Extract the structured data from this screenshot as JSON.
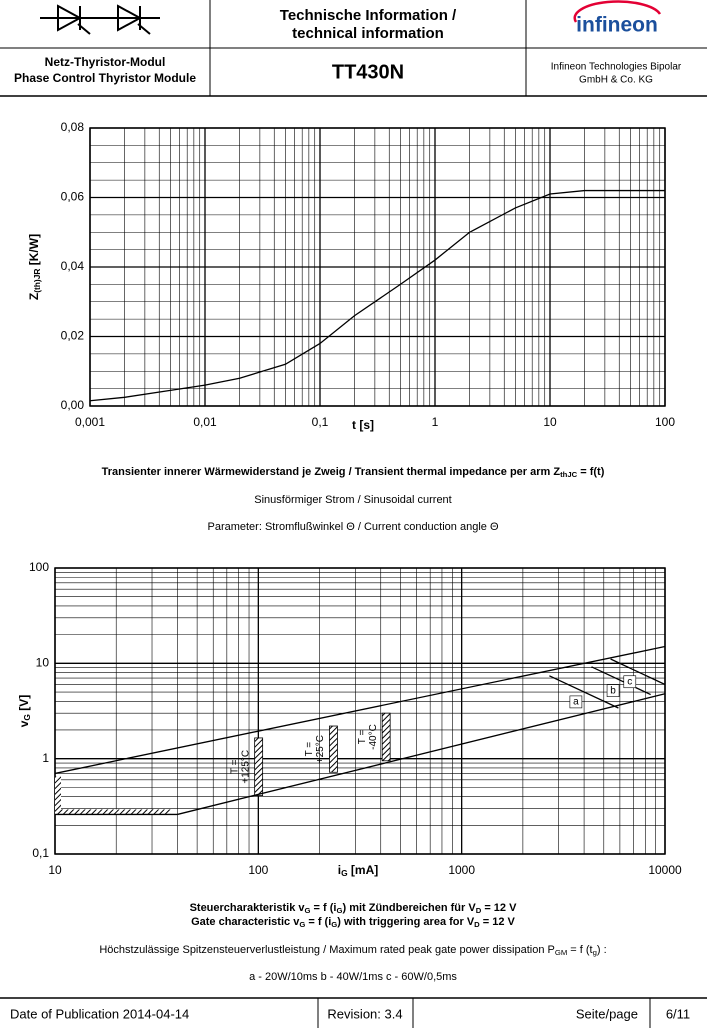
{
  "header": {
    "title": [
      "Technische Information /",
      "technical information"
    ],
    "product_type": [
      "Netz-Thyristor-Modul",
      "Phase Control Thyristor Module"
    ],
    "part_number": "TT430N",
    "logo": "infineon",
    "company": [
      "Infineon Technologies Bipolar",
      "GmbH & Co. KG"
    ]
  },
  "chart_data": [
    {
      "type": "line",
      "y_label": [
        "Z",
        "(th)JR",
        " [K/W]"
      ],
      "x_label": "t [s]",
      "log_x": true,
      "log_y": false,
      "grid": true,
      "xlim": [
        0.001,
        100
      ],
      "ylim": [
        0,
        0.08
      ],
      "xticks": [
        {
          "value": 0.001,
          "label": "0,001"
        },
        {
          "value": 0.01,
          "label": "0,01"
        },
        {
          "value": 0.1,
          "label": "0,1"
        },
        1,
        10,
        100
      ],
      "yticks": [
        {
          "value": 0,
          "label": "0,00"
        },
        {
          "value": 0.02,
          "label": "0,02"
        },
        {
          "value": 0.04,
          "label": "0,04"
        },
        {
          "value": 0.06,
          "label": "0,06"
        },
        {
          "value": 0.08,
          "label": "0,08"
        }
      ],
      "x": [
        0.001,
        0.002,
        0.005,
        0.01,
        0.02,
        0.05,
        0.1,
        0.2,
        0.5,
        1,
        2,
        5,
        10,
        20,
        50,
        100
      ],
      "series": [
        {
          "color": "#000000",
          "values": [
            0.0015,
            0.0025,
            0.0045,
            0.006,
            0.008,
            0.012,
            0.018,
            0.026,
            0.035,
            0.042,
            0.05,
            0.057,
            0.061,
            0.062,
            0.062,
            0.062
          ]
        }
      ],
      "captions": [
        [
          "Transienter innerer Wärmewiderstand je Zweig / Transient thermal impedance per arm Z",
          "thJC",
          " = f(t)"
        ],
        [
          "Sinusförmiger Strom / Sinusoidal current"
        ],
        [
          "Parameter: Stromflußwinkel Θ  / Current conduction angle Θ"
        ]
      ]
    },
    {
      "type": "line",
      "y_label": [
        "v",
        "G",
        " [V]"
      ],
      "x_label": [
        "i",
        "G",
        " [mA]"
      ],
      "log_x": true,
      "log_y": true,
      "grid": true,
      "xlim": [
        10,
        10000
      ],
      "ylim": [
        0.1,
        100
      ],
      "xticks": [
        10,
        100,
        1000,
        10000
      ],
      "yticks": [
        {
          "value": 0.1,
          "label": "0,1"
        },
        1,
        10,
        100
      ],
      "series": [
        {
          "color": "#000000",
          "x": [
            10,
            10000
          ],
          "values": [
            0.7,
            15
          ]
        },
        {
          "color": "#000000",
          "x": [
            40,
            10000
          ],
          "values": [
            0.26,
            4.8
          ]
        },
        {
          "color": "#000000",
          "x": [
            10,
            40
          ],
          "values": [
            0.26,
            0.26
          ]
        },
        {
          "name": "a",
          "color": "#000000",
          "x": [
            2700,
            5900
          ],
          "values": [
            7.4,
            3.4
          ]
        },
        {
          "name": "b",
          "color": "#000000",
          "x": [
            4350,
            8500
          ],
          "values": [
            9.2,
            4.7
          ]
        },
        {
          "name": "c",
          "color": "#000000",
          "x": [
            5400,
            10000
          ],
          "values": [
            11.1,
            6
          ]
        }
      ],
      "zones": [
        {
          "label": [
            "T =",
            "+125°C"
          ],
          "x": 105,
          "low": 0.41,
          "high": 1.65
        },
        {
          "label": [
            "T =",
            "+25°C"
          ],
          "x": 245,
          "low": 0.72,
          "high": 2.2
        },
        {
          "label": [
            "T =",
            "-40°C"
          ],
          "x": 445,
          "low": 0.95,
          "high": 3
        }
      ],
      "floor": {
        "x": [
          10,
          37
        ],
        "value": 0.26
      },
      "wall": {
        "x": 10,
        "low": 0.26,
        "high": 0.65
      },
      "captions": [
        [
          "Steuercharakteristik v",
          "G",
          " = f (i",
          "G",
          ") mit Zündbereichen für V",
          "D",
          " = 12 V"
        ],
        [
          "Gate characteristic v",
          "G",
          " = f (i",
          "G",
          ") with triggering area for V",
          "D",
          " = 12 V"
        ],
        [
          "Höchstzulässige Spitzensteuerverlustleistung / Maximum rated peak gate power dissipation P",
          "GM",
          " = f (t",
          "g",
          ") :"
        ],
        [
          "a - 20W/10ms    b - 40W/1ms    c - 60W/0,5ms"
        ]
      ]
    }
  ],
  "footer": {
    "date": "Date of Publication 2014-04-14",
    "revision": "Revision: 3.4",
    "page_label": "Seite/page",
    "page": "6/11"
  }
}
